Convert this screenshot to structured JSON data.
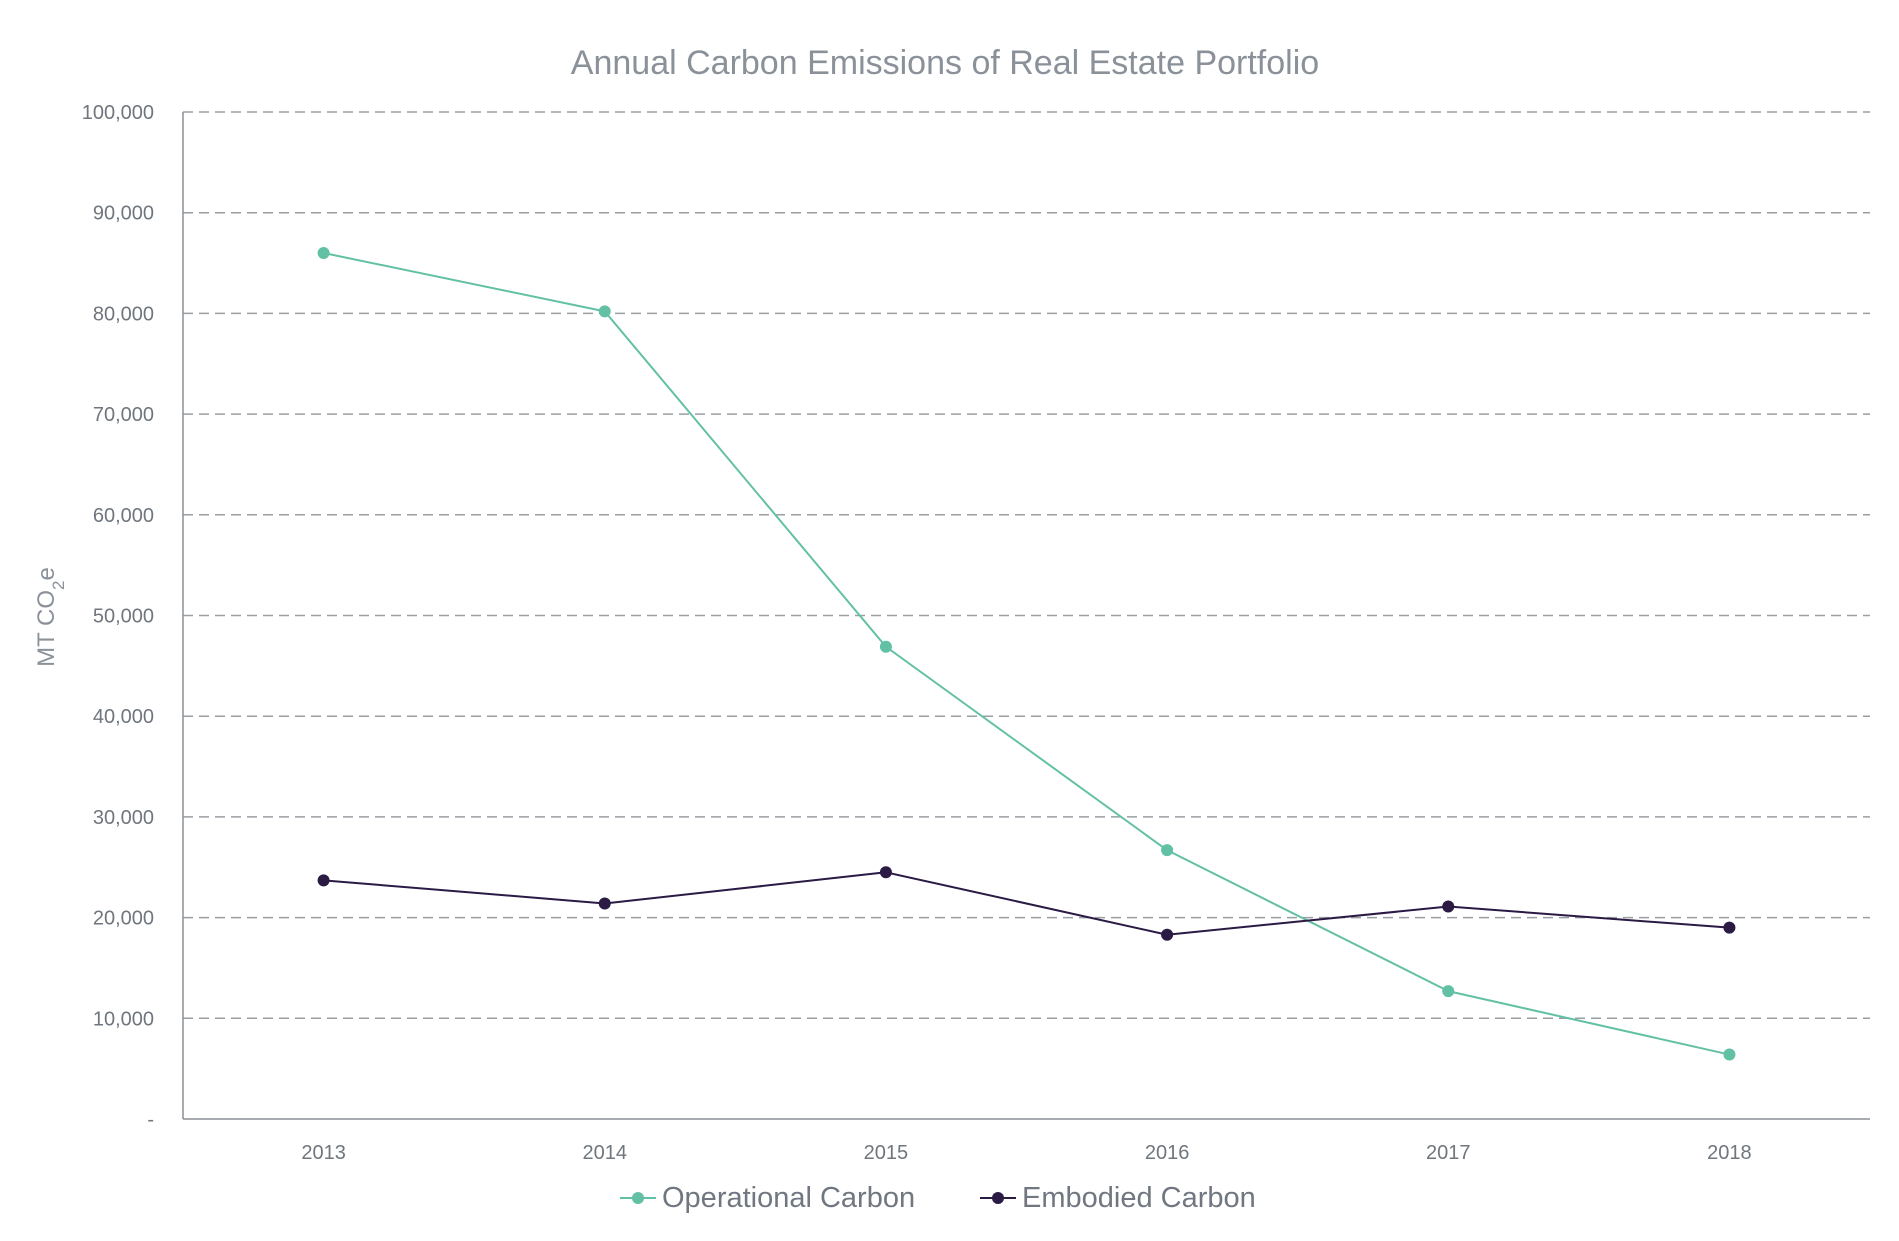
{
  "chart_data": {
    "type": "line",
    "title": "Annual Carbon Emissions of Real Estate Portfolio",
    "ylabel": {
      "prefix": "MT CO",
      "subscript": "2",
      "suffix": "e"
    },
    "xlabel": "",
    "categories": [
      "2013",
      "2014",
      "2015",
      "2016",
      "2017",
      "2018"
    ],
    "ylim": [
      0,
      100000
    ],
    "yticks": [
      {
        "value": 0,
        "label": "-"
      },
      {
        "value": 10000,
        "label": "10,000"
      },
      {
        "value": 20000,
        "label": "20,000"
      },
      {
        "value": 30000,
        "label": "30,000"
      },
      {
        "value": 40000,
        "label": "40,000"
      },
      {
        "value": 50000,
        "label": "50,000"
      },
      {
        "value": 60000,
        "label": "60,000"
      },
      {
        "value": 70000,
        "label": "70,000"
      },
      {
        "value": 80000,
        "label": "80,000"
      },
      {
        "value": 90000,
        "label": "90,000"
      },
      {
        "value": 100000,
        "label": "100,000"
      }
    ],
    "grid": true,
    "legend_position": "bottom",
    "series": [
      {
        "name": "Operational Carbon",
        "color": "#62c0a4",
        "values": [
          86000,
          80200,
          46900,
          26700,
          12700,
          6400
        ]
      },
      {
        "name": "Embodied Carbon",
        "color": "#2a1a44",
        "values": [
          23700,
          21400,
          24500,
          18300,
          21100,
          19000
        ]
      }
    ]
  }
}
